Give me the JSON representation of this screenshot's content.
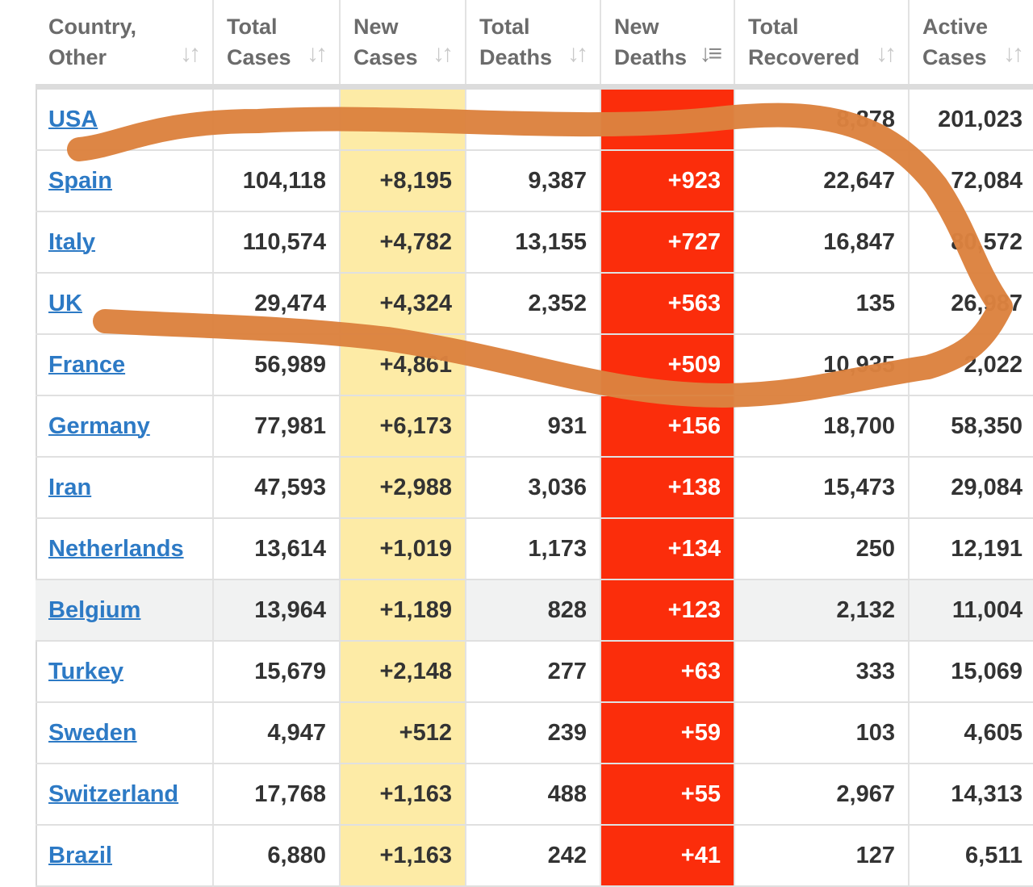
{
  "columns": [
    {
      "line1": "Country,",
      "line2": "Other"
    },
    {
      "line1": "Total",
      "line2": "Cases"
    },
    {
      "line1": "New",
      "line2": "Cases"
    },
    {
      "line1": "Total",
      "line2": "Deaths"
    },
    {
      "line1": "New",
      "line2": "Deaths"
    },
    {
      "line1": "Total",
      "line2": "Recovered"
    },
    {
      "line1": "Active",
      "line2": "Cases"
    }
  ],
  "sort_icon": "sort-arrows-icon",
  "active_sort_icon": "sort-descending-icon",
  "colors": {
    "new_cases_bg": "#fdeba6",
    "new_deaths_bg": "#fb2d0b",
    "link": "#2d7ac5",
    "scribble": "#dc823f"
  },
  "rows": [
    {
      "country": "USA",
      "total_cases": "",
      "new_cases": "",
      "total_deaths": "",
      "new_deaths": "",
      "total_recovered": "8,878",
      "active_cases": "201,023"
    },
    {
      "country": "Spain",
      "total_cases": "104,118",
      "new_cases": "+8,195",
      "total_deaths": "9,387",
      "new_deaths": "+923",
      "total_recovered": "22,647",
      "active_cases": "72,084"
    },
    {
      "country": "Italy",
      "total_cases": "110,574",
      "new_cases": "+4,782",
      "total_deaths": "13,155",
      "new_deaths": "+727",
      "total_recovered": "16,847",
      "active_cases": "80,572"
    },
    {
      "country": "UK",
      "total_cases": "29,474",
      "new_cases": "+4,324",
      "total_deaths": "2,352",
      "new_deaths": "+563",
      "total_recovered": "135",
      "active_cases": "26,987"
    },
    {
      "country": "France",
      "total_cases": "56,989",
      "new_cases": "+4,861",
      "total_deaths": "",
      "new_deaths": "+509",
      "total_recovered": "10,935",
      "active_cases": "2,022"
    },
    {
      "country": "Germany",
      "total_cases": "77,981",
      "new_cases": "+6,173",
      "total_deaths": "931",
      "new_deaths": "+156",
      "total_recovered": "18,700",
      "active_cases": "58,350"
    },
    {
      "country": "Iran",
      "total_cases": "47,593",
      "new_cases": "+2,988",
      "total_deaths": "3,036",
      "new_deaths": "+138",
      "total_recovered": "15,473",
      "active_cases": "29,084"
    },
    {
      "country": "Netherlands",
      "total_cases": "13,614",
      "new_cases": "+1,019",
      "total_deaths": "1,173",
      "new_deaths": "+134",
      "total_recovered": "250",
      "active_cases": "12,191"
    },
    {
      "country": "Belgium",
      "total_cases": "13,964",
      "new_cases": "+1,189",
      "total_deaths": "828",
      "new_deaths": "+123",
      "total_recovered": "2,132",
      "active_cases": "11,004"
    },
    {
      "country": "Turkey",
      "total_cases": "15,679",
      "new_cases": "+2,148",
      "total_deaths": "277",
      "new_deaths": "+63",
      "total_recovered": "333",
      "active_cases": "15,069"
    },
    {
      "country": "Sweden",
      "total_cases": "4,947",
      "new_cases": "+512",
      "total_deaths": "239",
      "new_deaths": "+59",
      "total_recovered": "103",
      "active_cases": "4,605"
    },
    {
      "country": "Switzerland",
      "total_cases": "17,768",
      "new_cases": "+1,163",
      "total_deaths": "488",
      "new_deaths": "+55",
      "total_recovered": "2,967",
      "active_cases": "14,313"
    },
    {
      "country": "Brazil",
      "total_cases": "6,880",
      "new_cases": "+1,163",
      "total_deaths": "242",
      "new_deaths": "+41",
      "total_recovered": "127",
      "active_cases": "6,511"
    }
  ]
}
